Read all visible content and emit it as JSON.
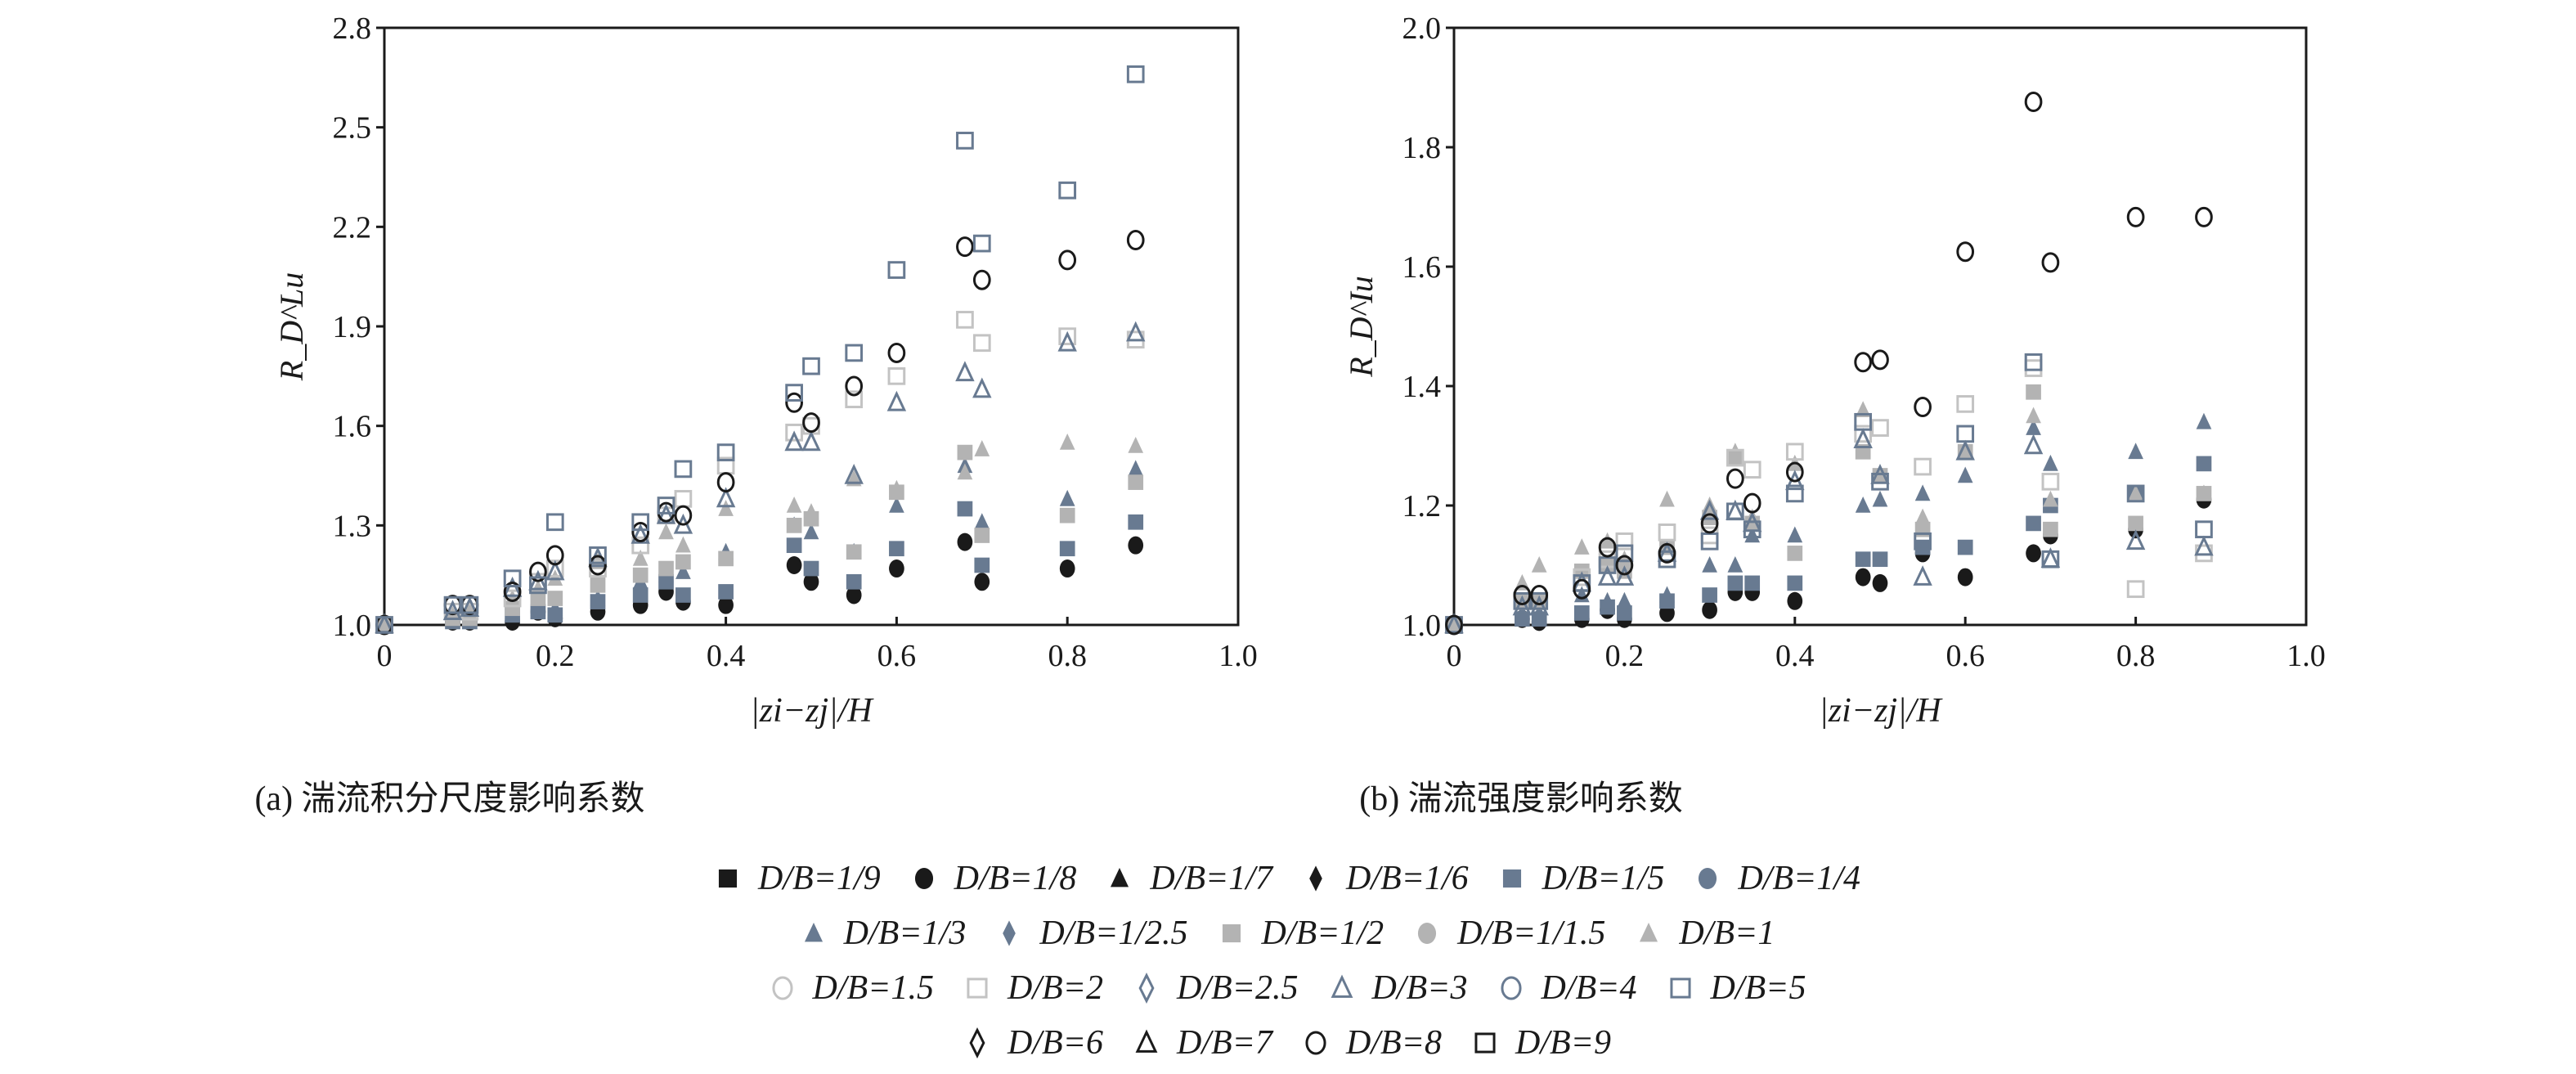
{
  "colors": {
    "black": "#1a1a1a",
    "blue": "#687a91",
    "gray": "#b3b3b3",
    "light": "#c3c3c3"
  },
  "legend": [
    {
      "label": "D/B=1/9",
      "shape": "square",
      "fill": "black"
    },
    {
      "label": "D/B=1/8",
      "shape": "circle",
      "fill": "black"
    },
    {
      "label": "D/B=1/7",
      "shape": "triangle",
      "fill": "black"
    },
    {
      "label": "D/B=1/6",
      "shape": "diamond",
      "fill": "black"
    },
    {
      "label": "D/B=1/5",
      "shape": "square",
      "fill": "blue"
    },
    {
      "label": "D/B=1/4",
      "shape": "circle",
      "fill": "blue"
    },
    {
      "label": "D/B=1/3",
      "shape": "triangle",
      "fill": "blue"
    },
    {
      "label": "D/B=1/2.5",
      "shape": "diamond",
      "fill": "blue"
    },
    {
      "label": "D/B=1/2",
      "shape": "square",
      "fill": "gray"
    },
    {
      "label": "D/B=1/1.5",
      "shape": "circle",
      "fill": "gray"
    },
    {
      "label": "D/B=1",
      "shape": "triangle",
      "fill": "gray"
    },
    {
      "label": "D/B=1.5",
      "shape": "circle",
      "stroke": "light"
    },
    {
      "label": "D/B=2",
      "shape": "square",
      "stroke": "light"
    },
    {
      "label": "D/B=2.5",
      "shape": "diamond",
      "stroke": "blue"
    },
    {
      "label": "D/B=3",
      "shape": "triangle",
      "stroke": "blue"
    },
    {
      "label": "D/B=4",
      "shape": "circle",
      "stroke": "blue"
    },
    {
      "label": "D/B=5",
      "shape": "square",
      "stroke": "blue"
    },
    {
      "label": "D/B=6",
      "shape": "diamond",
      "stroke": "black"
    },
    {
      "label": "D/B=7",
      "shape": "triangle",
      "stroke": "black"
    },
    {
      "label": "D/B=8",
      "shape": "circle",
      "stroke": "black"
    },
    {
      "label": "D/B=9",
      "shape": "square",
      "stroke": "black"
    }
  ],
  "chart_data": [
    {
      "type": "scatter",
      "title": "(a) 湍流积分尺度影响系数",
      "xlabel": "|zi−zj|/H",
      "ylabel": "R_D^Lu",
      "ylabel_main": "R",
      "ylabel_sup": "Lu",
      "ylabel_sub": "D",
      "xlim": [
        0,
        1.0
      ],
      "ylim": [
        1.0,
        2.8
      ],
      "xticks": [
        "0",
        "0.2",
        "0.4",
        "0.6",
        "0.8",
        "1.0"
      ],
      "yticks": [
        "1.0",
        "1.3",
        "1.6",
        "1.9",
        "2.2",
        "2.5",
        "2.8"
      ],
      "x": [
        0,
        0.08,
        0.1,
        0.15,
        0.18,
        0.2,
        0.25,
        0.3,
        0.33,
        0.35,
        0.4,
        0.48,
        0.5,
        0.55,
        0.6,
        0.68,
        0.7,
        0.8,
        0.88
      ],
      "series": [
        {
          "name": "D/B=1/8",
          "y": [
            1.0,
            1.01,
            1.01,
            1.01,
            1.04,
            1.02,
            1.04,
            1.06,
            1.1,
            1.07,
            1.06,
            1.18,
            1.13,
            1.09,
            1.17,
            1.25,
            1.13,
            1.17,
            1.24
          ]
        },
        {
          "name": "D/B=1/5",
          "y": [
            1.0,
            1.01,
            1.01,
            1.03,
            1.04,
            1.03,
            1.07,
            1.09,
            1.13,
            1.09,
            1.1,
            1.24,
            1.17,
            1.13,
            1.23,
            1.35,
            1.18,
            1.23,
            1.31
          ]
        },
        {
          "name": "D/B=1/3",
          "y": [
            1.0,
            1.02,
            1.02,
            1.04,
            1.05,
            1.05,
            1.08,
            1.13,
            1.15,
            1.16,
            1.22,
            1.3,
            1.28,
            1.22,
            1.36,
            1.48,
            1.31,
            1.38,
            1.47
          ]
        },
        {
          "name": "D/B=1/2",
          "y": [
            1.0,
            1.02,
            1.02,
            1.05,
            1.08,
            1.08,
            1.12,
            1.15,
            1.17,
            1.19,
            1.2,
            1.3,
            1.32,
            1.22,
            1.4,
            1.52,
            1.27,
            1.33,
            1.43
          ]
        },
        {
          "name": "D/B=1",
          "y": [
            1.0,
            1.03,
            1.05,
            1.08,
            1.11,
            1.14,
            1.19,
            1.2,
            1.28,
            1.24,
            1.35,
            1.36,
            1.34,
            1.44,
            1.41,
            1.46,
            1.53,
            1.55,
            1.54
          ]
        },
        {
          "name": "D/B=2",
          "y": [
            1.0,
            1.04,
            1.04,
            1.08,
            1.13,
            1.17,
            1.17,
            1.24,
            1.33,
            1.38,
            1.48,
            1.58,
            1.6,
            1.68,
            1.75,
            1.92,
            1.85,
            1.87,
            1.86
          ]
        },
        {
          "name": "D/B=3",
          "y": [
            1.0,
            1.04,
            1.05,
            1.11,
            1.13,
            1.16,
            1.2,
            1.27,
            1.33,
            1.3,
            1.38,
            1.55,
            1.55,
            1.45,
            1.67,
            1.76,
            1.71,
            1.85,
            1.88
          ]
        },
        {
          "name": "D/B=8",
          "y": [
            1.0,
            1.06,
            1.06,
            1.1,
            1.16,
            1.21,
            1.18,
            1.28,
            1.34,
            1.33,
            1.43,
            1.67,
            1.61,
            1.72,
            1.82,
            2.14,
            2.04,
            2.1,
            2.16
          ]
        },
        {
          "name": "D/B=5",
          "y": [
            1.0,
            1.06,
            1.06,
            1.14,
            1.12,
            1.31,
            1.21,
            1.31,
            1.36,
            1.47,
            1.52,
            1.7,
            1.78,
            1.82,
            2.07,
            2.46,
            2.15,
            2.31,
            2.66
          ]
        }
      ]
    },
    {
      "type": "scatter",
      "title": "(b) 湍流强度影响系数",
      "xlabel": "|zi−zj|/H",
      "ylabel": "R_D^Iu",
      "ylabel_main": "R",
      "ylabel_sup": "Iu",
      "ylabel_sub": "D",
      "xlim": [
        0,
        1.0
      ],
      "ylim": [
        1.0,
        2.0
      ],
      "xticks": [
        "0",
        "0.2",
        "0.4",
        "0.6",
        "0.8",
        "1.0"
      ],
      "yticks": [
        "1.0",
        "1.2",
        "1.4",
        "1.6",
        "1.8",
        "2.0"
      ],
      "x": [
        0,
        0.08,
        0.1,
        0.15,
        0.18,
        0.2,
        0.25,
        0.3,
        0.33,
        0.35,
        0.4,
        0.48,
        0.5,
        0.55,
        0.6,
        0.68,
        0.7,
        0.8,
        0.88
      ],
      "series": [
        {
          "name": "D/B=1/8",
          "y": [
            1.0,
            1.01,
            1.005,
            1.01,
            1.025,
            1.01,
            1.02,
            1.025,
            1.055,
            1.055,
            1.04,
            1.08,
            1.07,
            1.12,
            1.08,
            1.12,
            1.15,
            1.16,
            1.21
          ]
        },
        {
          "name": "D/B=1/5",
          "y": [
            1.0,
            1.01,
            1.01,
            1.02,
            1.03,
            1.02,
            1.04,
            1.05,
            1.07,
            1.07,
            1.07,
            1.11,
            1.11,
            1.13,
            1.13,
            1.17,
            1.2,
            1.22,
            1.27
          ]
        },
        {
          "name": "D/B=1/3",
          "y": [
            1.0,
            1.02,
            1.02,
            1.05,
            1.04,
            1.04,
            1.05,
            1.1,
            1.1,
            1.15,
            1.15,
            1.2,
            1.21,
            1.22,
            1.25,
            1.33,
            1.27,
            1.29,
            1.34
          ]
        },
        {
          "name": "D/B=1/2",
          "y": [
            1.0,
            1.04,
            1.04,
            1.09,
            1.1,
            1.09,
            1.13,
            1.18,
            1.28,
            1.17,
            1.12,
            1.29,
            1.25,
            1.16,
            1.29,
            1.39,
            1.16,
            1.17,
            1.22
          ]
        },
        {
          "name": "D/B=1",
          "y": [
            1.0,
            1.07,
            1.1,
            1.13,
            1.14,
            1.11,
            1.21,
            1.2,
            1.29,
            1.18,
            1.27,
            1.36,
            1.25,
            1.18,
            1.29,
            1.35,
            1.21,
            1.22,
            1.22
          ]
        },
        {
          "name": "D/B=2",
          "y": [
            1.0,
            1.04,
            1.04,
            1.08,
            1.11,
            1.14,
            1.155,
            1.15,
            1.28,
            1.26,
            1.29,
            1.32,
            1.33,
            1.265,
            1.37,
            1.43,
            1.24,
            1.06,
            1.12
          ]
        },
        {
          "name": "D/B=3",
          "y": [
            1.0,
            1.03,
            1.03,
            1.07,
            1.08,
            1.08,
            1.12,
            1.19,
            1.19,
            1.17,
            1.24,
            1.31,
            1.25,
            1.08,
            1.29,
            1.3,
            1.11,
            1.14,
            1.13
          ]
        },
        {
          "name": "D/B=5",
          "y": [
            1.0,
            1.04,
            1.04,
            1.07,
            1.1,
            1.12,
            1.11,
            1.14,
            1.19,
            1.16,
            1.22,
            1.34,
            1.24,
            1.14,
            1.32,
            1.44,
            1.11,
            1.22,
            1.16
          ]
        },
        {
          "name": "D/B=8",
          "y": [
            1.0,
            1.05,
            1.05,
            1.06,
            1.13,
            1.1,
            1.12,
            1.17,
            1.245,
            1.204,
            1.256,
            1.44,
            1.444,
            1.365,
            1.625,
            1.876,
            1.607,
            1.683,
            1.683
          ]
        }
      ]
    }
  ]
}
